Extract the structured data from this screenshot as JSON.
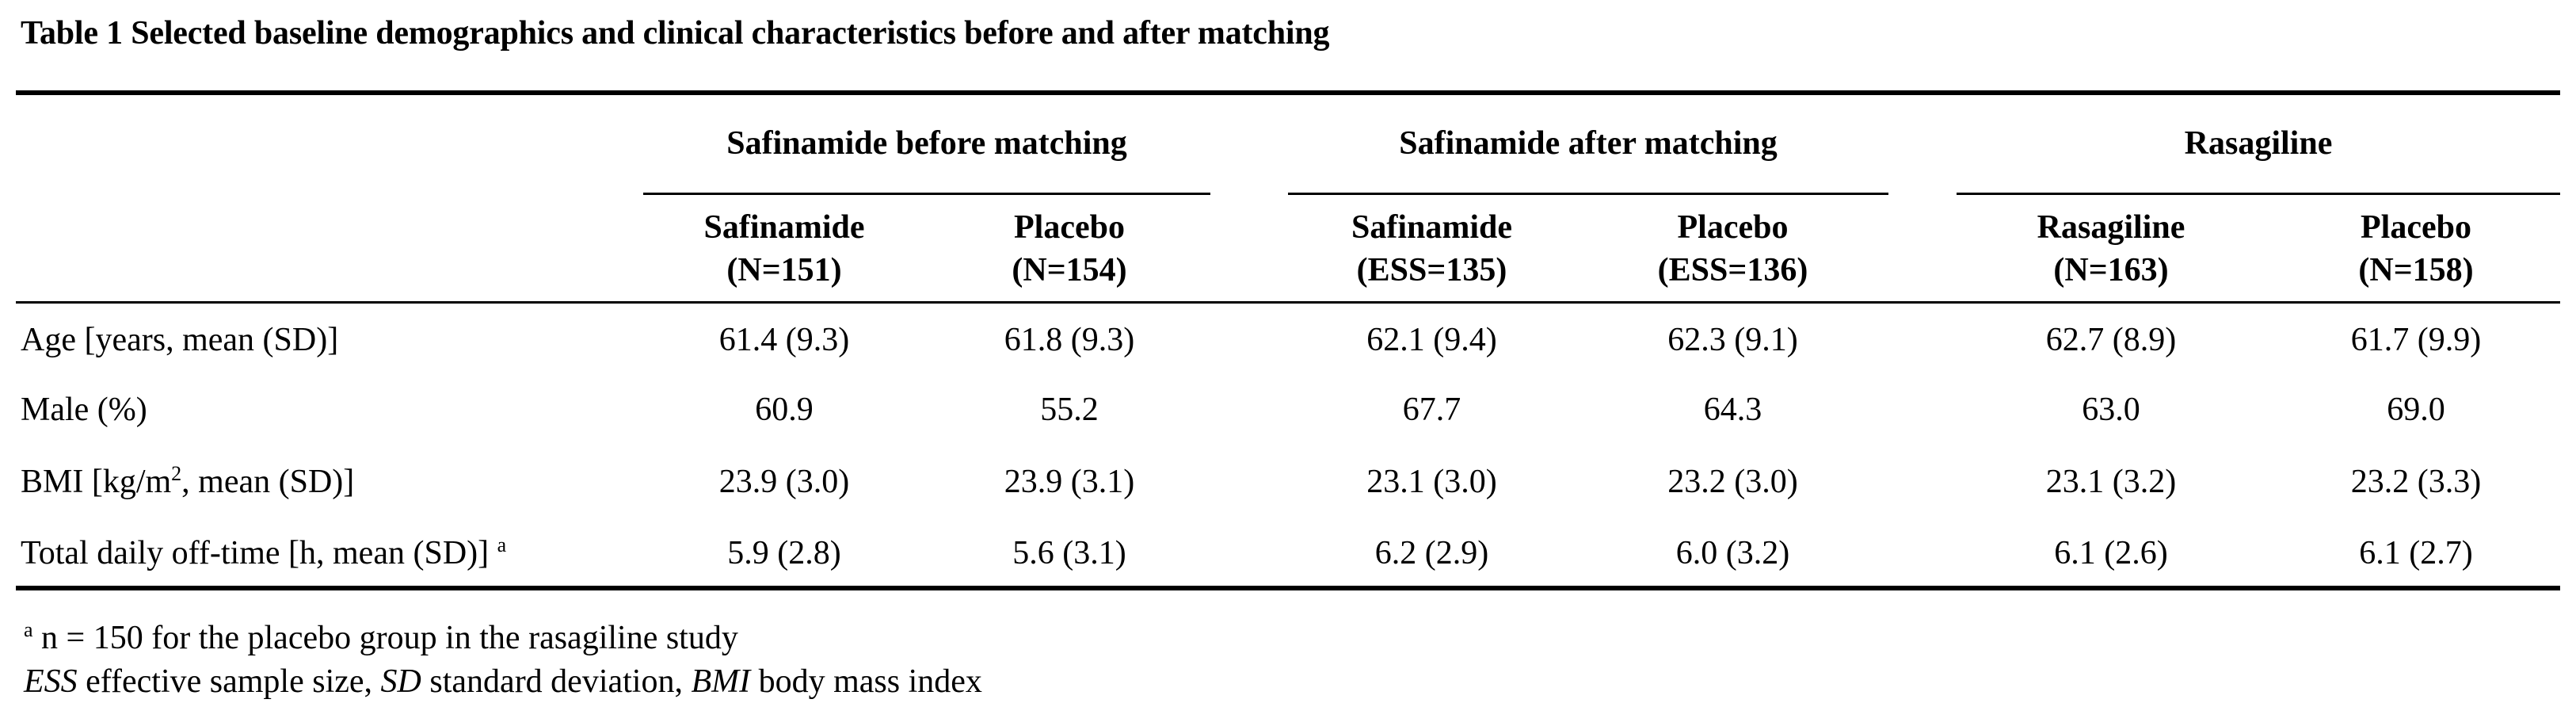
{
  "caption": "Table 1 Selected baseline demographics and clinical characteristics before and after matching",
  "groups": [
    {
      "label": "Safinamide before matching"
    },
    {
      "label": "Safinamide after matching"
    },
    {
      "label": "Rasagiline"
    }
  ],
  "columns": [
    {
      "name": "Safinamide",
      "n": "(N=151)"
    },
    {
      "name": "Placebo",
      "n": "(N=154)"
    },
    {
      "name": "Safinamide",
      "n": "(ESS=135)"
    },
    {
      "name": "Placebo",
      "n": "(ESS=136)"
    },
    {
      "name": "Rasagiline",
      "n": "(N=163)"
    },
    {
      "name": "Placebo",
      "n": "(N=158)"
    }
  ],
  "rows": [
    {
      "label": "Age [years, mean (SD)]",
      "values": [
        "61.4 (9.3)",
        "61.8 (9.3)",
        "62.1 (9.4)",
        "62.3 (9.1)",
        "62.7 (8.9)",
        "61.7 (9.9)"
      ]
    },
    {
      "label": "Male (%)",
      "values": [
        "60.9",
        "55.2",
        "67.7",
        "64.3",
        "63.0",
        "69.0"
      ]
    },
    {
      "label_pre": "BMI [kg/m",
      "label_sup": "2",
      "label_post": ", mean (SD)]",
      "values": [
        "23.9 (3.0)",
        "23.9 (3.1)",
        "23.1 (3.0)",
        "23.2 (3.0)",
        "23.1 (3.2)",
        "23.2 (3.3)"
      ]
    },
    {
      "label": "Total daily off-time [h, mean (SD)]",
      "label_sup": "a",
      "values": [
        "5.9 (2.8)",
        "5.6 (3.1)",
        "6.2 (2.9)",
        "6.0 (3.2)",
        "6.1 (2.6)",
        "6.1 (2.7)"
      ]
    }
  ],
  "footnotes": {
    "a_marker": "a",
    "a_text": "n = 150 for the placebo group in the rasagiline study",
    "abbrev": [
      {
        "abbr": "ESS",
        "def": "effective sample size,"
      },
      {
        "abbr": "SD",
        "def": "standard deviation,"
      },
      {
        "abbr": "BMI",
        "def": "body mass index"
      }
    ]
  }
}
